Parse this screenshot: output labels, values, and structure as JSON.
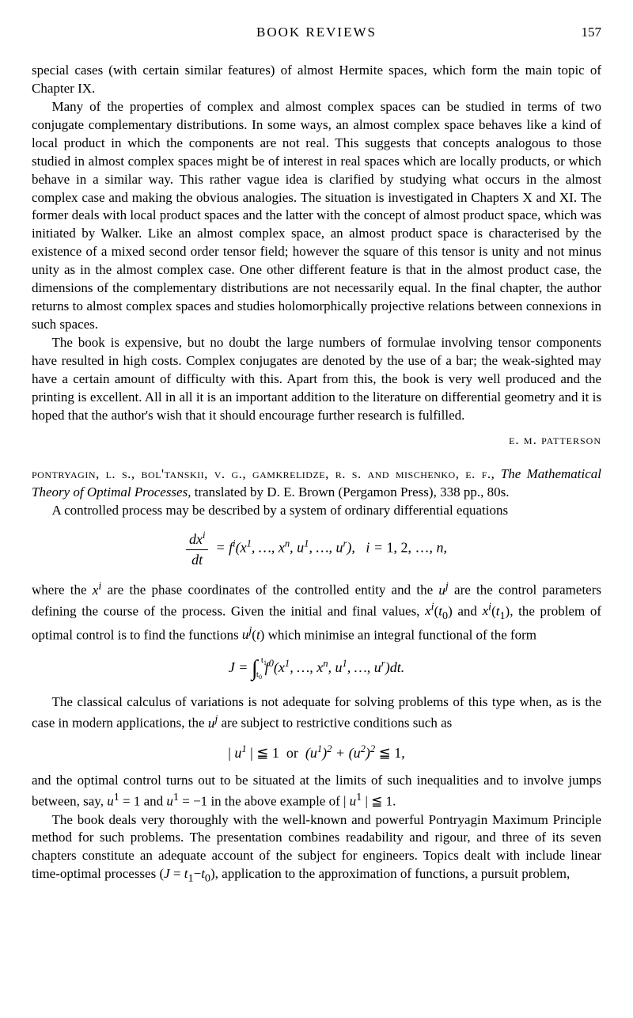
{
  "header": {
    "title": "BOOK REVIEWS",
    "pageNumber": "157"
  },
  "review1": {
    "p1": "special cases (with certain similar features) of almost Hermite spaces, which form the main topic of Chapter IX.",
    "p2": "Many of the properties of complex and almost complex spaces can be studied in terms of two conjugate complementary distributions. In some ways, an almost complex space behaves like a kind of local product in which the components are not real. This suggests that concepts analogous to those studied in almost complex spaces might be of interest in real spaces which are locally products, or which behave in a similar way. This rather vague idea is clarified by studying what occurs in the almost complex case and making the obvious analogies. The situation is investigated in Chapters X and XI. The former deals with local product spaces and the latter with the concept of almost product space, which was initiated by Walker. Like an almost complex space, an almost product space is characterised by the existence of a mixed second order tensor field; however the square of this tensor is unity and not minus unity as in the almost complex case. One other different feature is that in the almost product case, the dimensions of the complementary distributions are not necessarily equal. In the final chapter, the author returns to almost complex spaces and studies holomorphically projective relations between connexions in such spaces.",
    "p3": "The book is expensive, but no doubt the large numbers of formulae involving tensor components have resulted in high costs. Complex conjugates are denoted by the use of a bar; the weak-sighted may have a certain amount of difficulty with this. Apart from this, the book is very well produced and the printing is excellent. All in all it is an important addition to the literature on differential geometry and it is hoped that the author's wish that it should encourage further research is fulfilled.",
    "author": "e. m. patterson"
  },
  "review2": {
    "authors": "pontryagin, l. s., bol'tanskii, v. g., gamkrelidze, r. s. and mischenko, e. f.,",
    "title": "The Mathematical Theory of Optimal Processes,",
    "publisher": " translated by D. E. Brown (Pergamon Press), 338 pp., 80s.",
    "p1": "A controlled process may be described by a system of ordinary differential equations",
    "p2_a": "where the ",
    "p2_b": " are the phase coordinates of the controlled entity and the ",
    "p2_c": " are the control parameters defining the course of the process. Given the initial and final values, ",
    "p2_d": " and ",
    "p2_e": ", the problem of optimal control is to find the functions ",
    "p2_f": " which minimise an integral functional of the form",
    "p3_a": "The classical calculus of variations is not adequate for solving problems of this type when, as is the case in modern applications, the ",
    "p3_b": " are subject to restrictive conditions such as",
    "p4_a": "and the optimal control turns out to be situated at the limits of such inequalities and to involve jumps between, say, ",
    "p4_b": " and ",
    "p4_c": " in the above example of ",
    "p5_a": "The book deals very thoroughly with the well-known and powerful Pontryagin Maximum Principle method for such problems. The presentation combines readability and rigour, and three of its seven chapters constitute an adequate account of the subject for engineers. Topics dealt with include linear time-optimal processes ",
    "p5_b": ", application to the approximation of functions, a pursuit problem,"
  }
}
